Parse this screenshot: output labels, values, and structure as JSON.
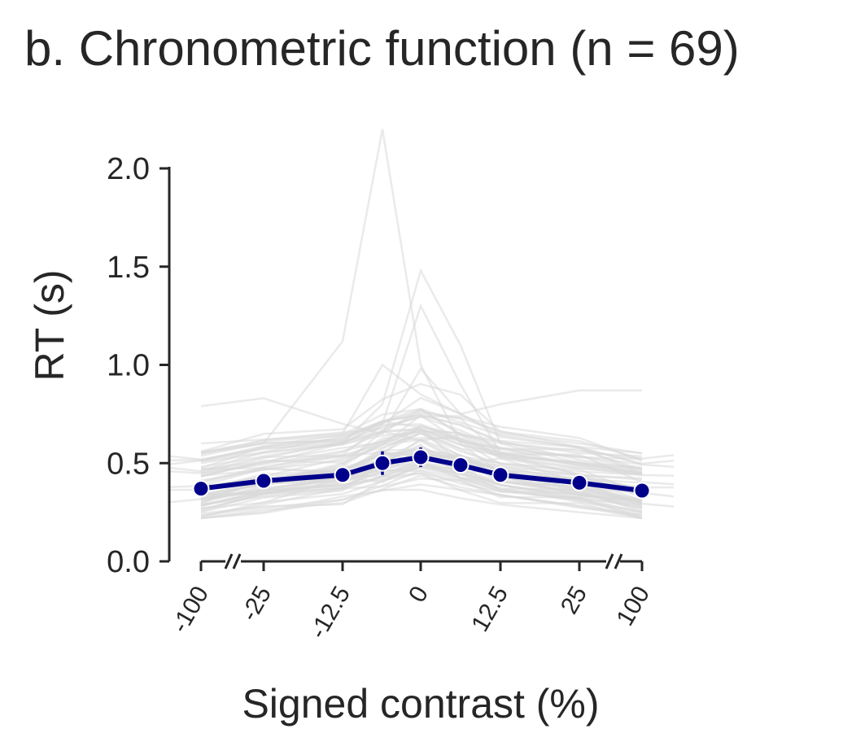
{
  "chart_data": {
    "type": "line",
    "title": "b. Chronometric function (n = 69)",
    "xlabel": "Signed contrast (%)",
    "ylabel": "RT (s)",
    "x_categories": [
      "-100",
      "-25",
      "-12.5",
      "-6.25",
      "0",
      "6.25",
      "12.5",
      "25",
      "100"
    ],
    "x_tick_labels_shown": [
      "-100",
      "-25",
      "-12.5",
      "0",
      "12.5",
      "25",
      "100"
    ],
    "x_axis_breaks": [
      "between -100 and -25",
      "between 25 and 100"
    ],
    "ylim": [
      0,
      2.0
    ],
    "y_ticks": [
      "0.0",
      "0.5",
      "1.0",
      "1.5",
      "2.0"
    ],
    "grid": false,
    "series": [
      {
        "role": "group mean with error bars",
        "color": "#00008b",
        "values": [
          0.37,
          0.41,
          0.44,
          0.5,
          0.53,
          0.49,
          0.44,
          0.4,
          0.36
        ],
        "error": [
          0.02,
          0.02,
          0.03,
          0.06,
          0.05,
          0.04,
          0.02,
          0.02,
          0.02
        ]
      }
    ],
    "individual_subjects": {
      "color": "#d9d9d9",
      "count_drawn": 69,
      "examples": [
        [
          0.55,
          0.6,
          1.12,
          2.2,
          1.0,
          0.6,
          0.45,
          0.42,
          0.4
        ],
        [
          0.45,
          0.5,
          0.6,
          0.8,
          1.48,
          1.1,
          0.6,
          0.5,
          0.45
        ],
        [
          0.5,
          0.55,
          0.6,
          0.7,
          1.3,
          0.9,
          0.55,
          0.5,
          0.48
        ],
        [
          0.79,
          0.83,
          0.7,
          0.65,
          0.98,
          0.75,
          0.8,
          0.87,
          0.87
        ],
        [
          0.6,
          0.62,
          0.65,
          1.0,
          0.85,
          0.75,
          0.65,
          0.6,
          0.55
        ]
      ]
    }
  }
}
